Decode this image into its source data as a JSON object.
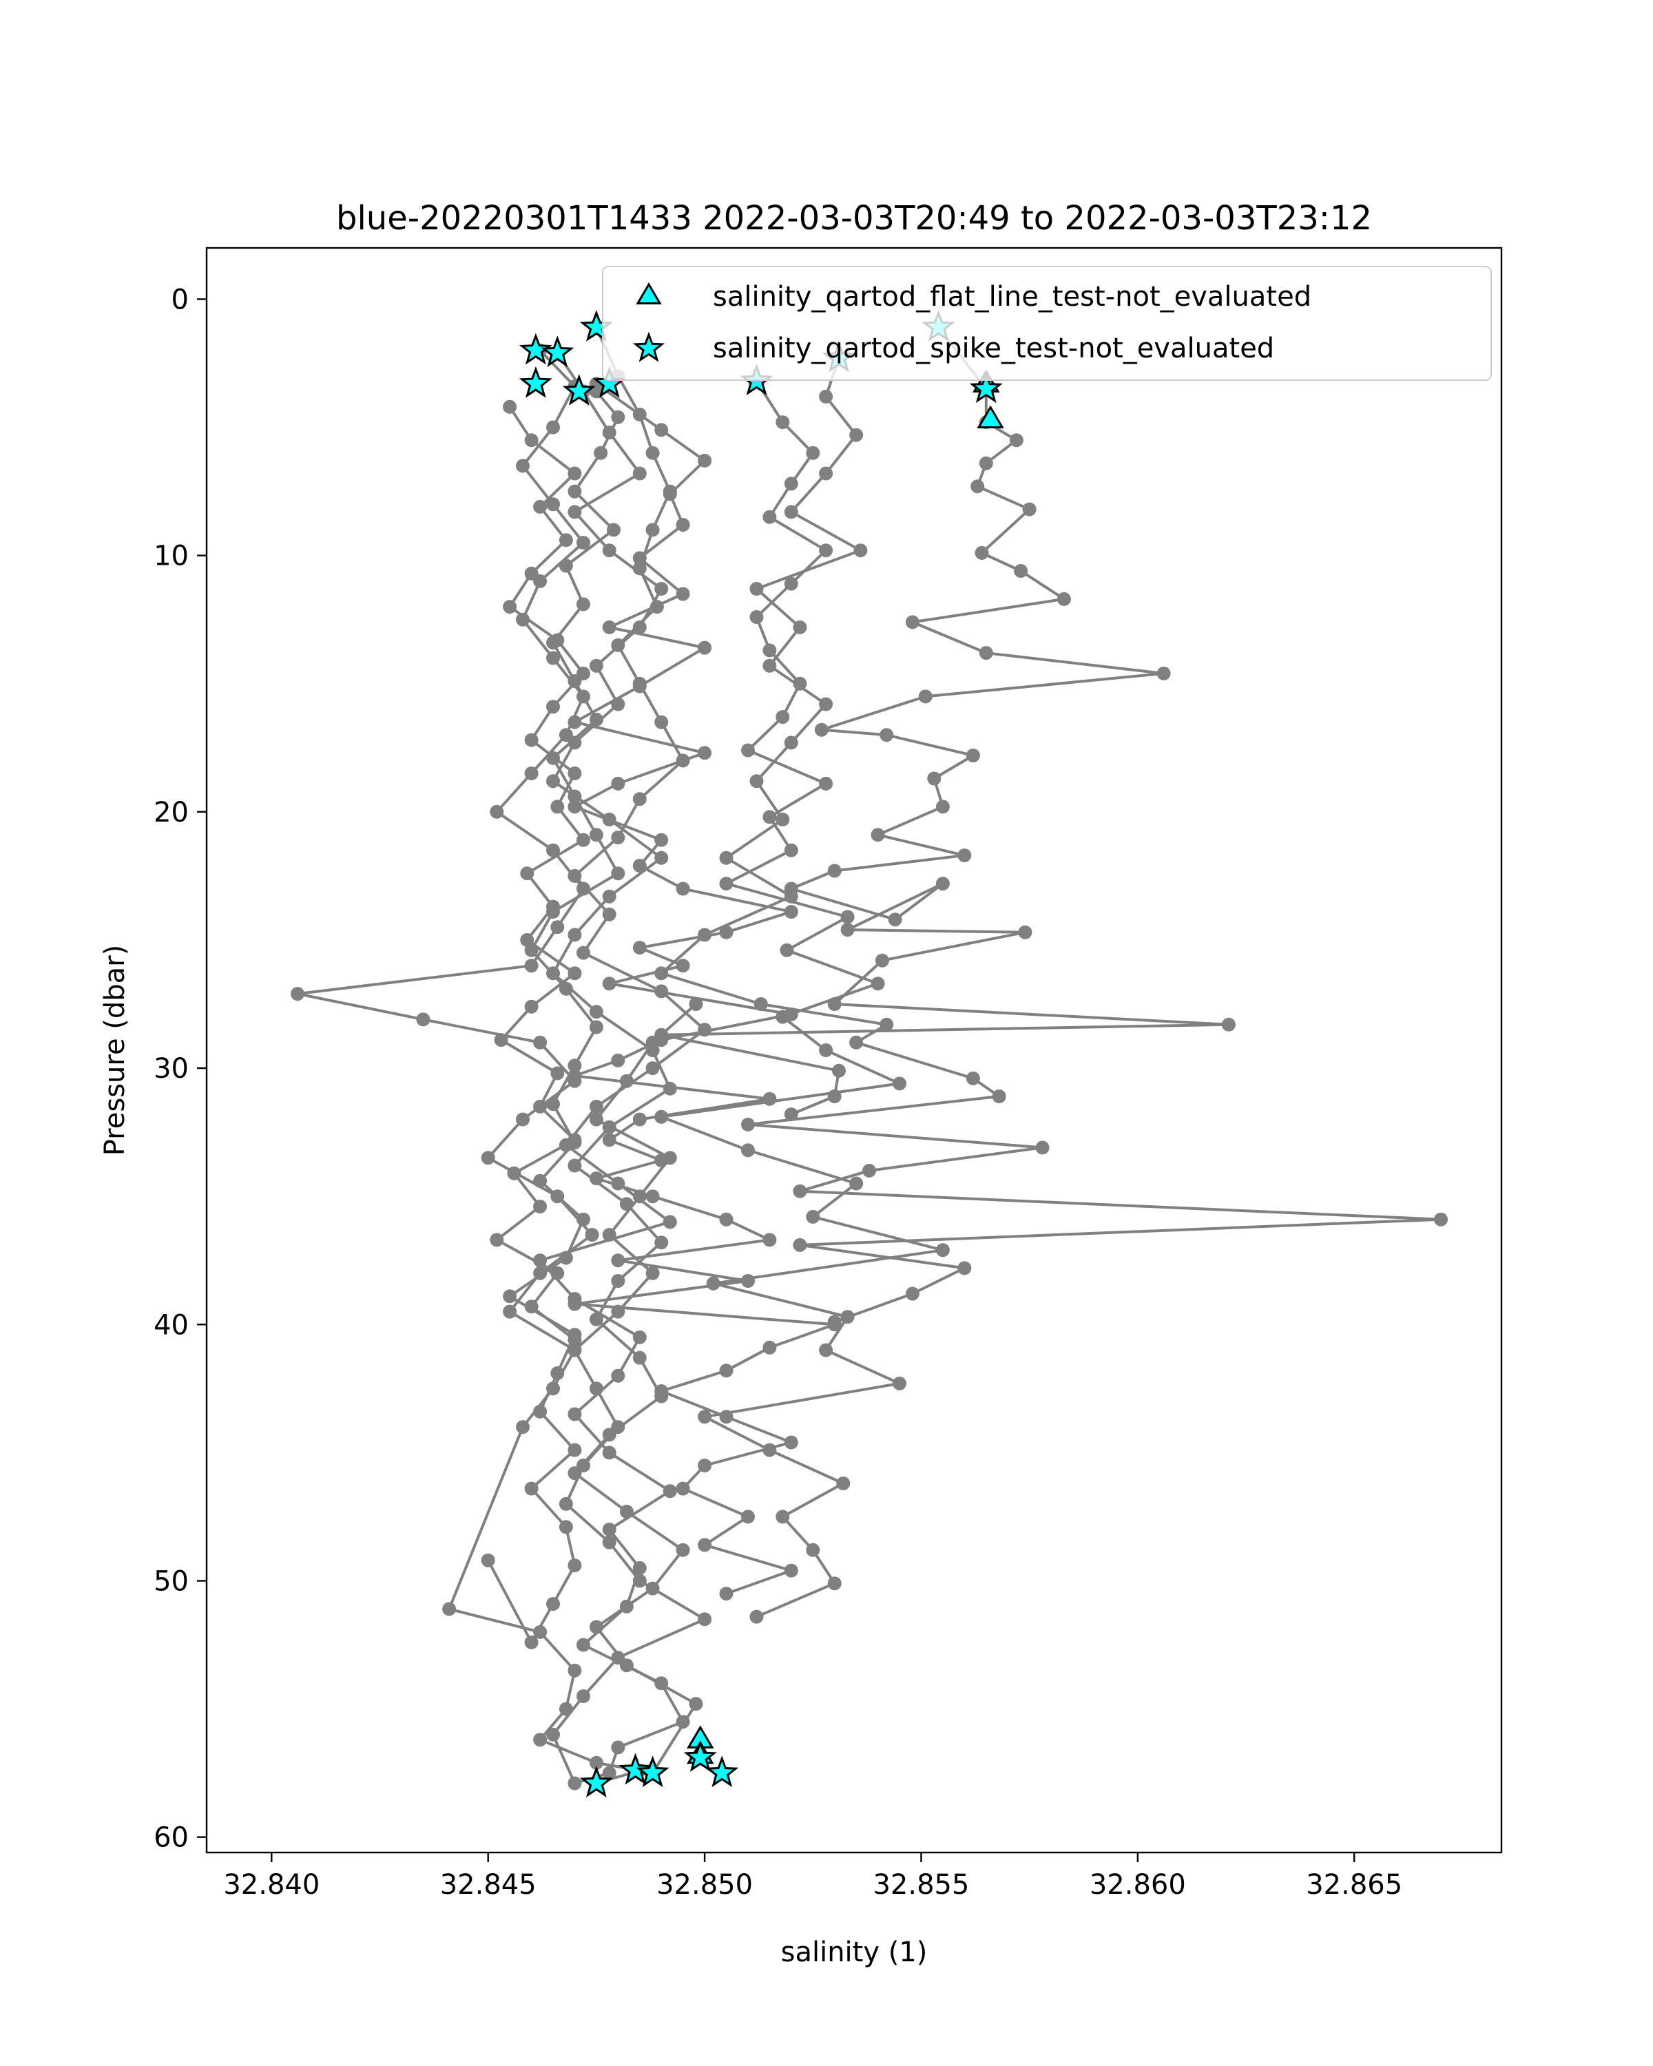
{
  "chart_data": {
    "type": "line",
    "title": "blue-20220301T1433 2022-03-03T20:49 to 2022-03-03T23:12",
    "xlabel": "salinity (1)",
    "ylabel": "Pressure (dbar)",
    "xlim": [
      32.8385,
      32.8684
    ],
    "ylim": [
      60.6,
      -2.0
    ],
    "y_inverted": true,
    "x_ticks": [
      32.84,
      32.845,
      32.85,
      32.855,
      32.86,
      32.865
    ],
    "x_tick_labels": [
      "32.840",
      "32.845",
      "32.850",
      "32.855",
      "32.860",
      "32.865"
    ],
    "y_ticks": [
      0,
      10,
      20,
      30,
      40,
      50,
      60
    ],
    "y_tick_labels": [
      "0",
      "10",
      "20",
      "30",
      "40",
      "50",
      "60"
    ],
    "grid": false,
    "legend_position": "top-right",
    "colors": {
      "profile": "#808080",
      "marker_fill": "#00ffff",
      "marker_edge": "#000000"
    },
    "series": [
      {
        "style": "profile",
        "x": [
          32.8475,
          32.848,
          32.8485,
          32.8488,
          32.8492,
          32.8488,
          32.8485,
          32.8489,
          32.848,
          32.8485,
          32.849,
          32.8495,
          32.8485,
          32.848,
          32.847,
          32.8478,
          32.8472,
          32.849,
          32.85,
          32.8488,
          32.8475,
          32.8468,
          32.848,
          32.8492,
          32.8462,
          32.847,
          32.8485,
          32.848,
          32.847,
          32.8478,
          32.8492,
          32.8478,
          32.8485,
          32.8482,
          32.8472,
          32.849,
          32.8495,
          32.848,
          32.8478,
          32.847,
          32.8465,
          32.8472,
          32.848,
          32.85,
          32.8485,
          32.8478,
          32.8468,
          32.8472,
          32.848,
          32.8475,
          32.847,
          32.848,
          32.8488,
          32.8478,
          32.8485,
          32.8492,
          32.8475,
          32.8482,
          32.8488,
          32.8498
        ],
        "y": [
          1.1,
          3.0,
          4.5,
          6.0,
          7.5,
          9.0,
          10.5,
          12.0,
          13.5,
          15.0,
          16.5,
          18.0,
          19.5,
          21.0,
          22.5,
          24.0,
          25.5,
          27.0,
          28.5,
          30.0,
          31.5,
          33.0,
          34.5,
          36.0,
          37.5,
          39.0,
          40.5,
          42.0,
          43.5,
          45.0,
          46.5,
          48.0,
          49.5,
          51.0,
          52.5,
          54.0,
          55.5,
          56.5,
          57.5,
          57.9,
          56.0,
          54.5,
          53.0,
          51.5,
          50.0,
          48.5,
          47.0,
          45.5,
          44.0,
          42.5,
          41.0,
          39.5,
          38.0,
          36.5,
          35.0,
          33.5,
          32.0,
          30.5,
          29.0,
          27.5
        ]
      },
      {
        "style": "profile",
        "x": [
          32.8462,
          32.847,
          32.8465,
          32.8458,
          32.8465,
          32.8472,
          32.8462,
          32.8458,
          32.8465,
          32.8472,
          32.8468,
          32.846,
          32.8452,
          32.8465,
          32.8472,
          32.8466,
          32.846,
          32.8406,
          32.8435,
          32.8462,
          32.847,
          32.8458,
          32.845,
          32.8466,
          32.8474,
          32.8462,
          32.8455,
          32.847,
          32.8465,
          32.8458,
          32.8441,
          32.8462,
          32.847,
          32.8468,
          32.8462,
          32.8475,
          32.8485,
          32.8475
        ],
        "y": [
          2.0,
          3.4,
          5.0,
          6.5,
          8.0,
          9.5,
          11.0,
          12.5,
          14.0,
          15.5,
          17.0,
          18.5,
          20.0,
          21.5,
          23.0,
          24.5,
          26.0,
          27.1,
          28.1,
          29.0,
          30.5,
          32.0,
          33.5,
          35.0,
          36.5,
          38.0,
          39.5,
          41.0,
          42.5,
          44.0,
          51.1,
          52.0,
          53.5,
          55.0,
          56.2,
          57.1,
          57.4,
          57.9
        ]
      },
      {
        "style": "profile",
        "x": [
          32.8466,
          32.8472,
          32.8478,
          32.8485,
          32.847,
          32.8478,
          32.849,
          32.8485,
          32.8475,
          32.848,
          32.847,
          32.8465,
          32.8478,
          32.849,
          32.8478,
          32.847,
          32.8465,
          32.8475,
          32.8488,
          32.8492,
          32.8478,
          32.847,
          32.8482,
          32.849,
          32.848,
          32.8475,
          32.8485,
          32.849,
          32.8478,
          32.847,
          32.8482,
          32.8495,
          32.8488,
          32.8475,
          32.8482,
          32.8498,
          32.8488
        ],
        "y": [
          2.1,
          3.6,
          5.2,
          6.8,
          8.3,
          9.8,
          11.3,
          12.8,
          14.3,
          15.8,
          17.3,
          18.8,
          20.3,
          21.8,
          23.3,
          24.8,
          26.3,
          27.8,
          29.3,
          30.8,
          32.3,
          33.8,
          35.3,
          36.8,
          38.3,
          39.8,
          41.3,
          42.8,
          44.3,
          45.8,
          47.3,
          48.8,
          50.3,
          51.8,
          53.3,
          54.8,
          57.5
        ]
      },
      {
        "style": "profile",
        "x": [
          32.8475,
          32.849,
          32.85,
          32.8492,
          32.8495,
          32.8485,
          32.8495,
          32.8478,
          32.85,
          32.8485,
          32.847,
          32.85,
          32.848,
          32.847,
          32.849,
          32.8485,
          32.8495,
          32.852,
          32.8505,
          32.8485,
          32.8495,
          32.8478,
          32.852,
          32.849,
          32.848,
          32.847,
          32.8515,
          32.8485,
          32.8478,
          32.849,
          32.8475,
          32.8488,
          32.8505,
          32.8515,
          32.848,
          32.851,
          32.847,
          32.853,
          32.8515,
          32.8505,
          32.849,
          32.8505,
          32.852,
          32.85,
          32.8495,
          32.851,
          32.85,
          32.852,
          32.8505
        ],
        "y": [
          3.3,
          5.1,
          6.3,
          7.6,
          8.8,
          10.1,
          11.5,
          12.8,
          13.6,
          15.1,
          16.5,
          17.7,
          18.9,
          19.8,
          21.1,
          22.1,
          23.0,
          23.9,
          24.7,
          25.3,
          26.0,
          26.7,
          27.9,
          28.9,
          29.7,
          30.3,
          31.2,
          32.0,
          32.8,
          33.6,
          34.3,
          35.0,
          35.9,
          36.7,
          37.5,
          38.3,
          39.2,
          40.0,
          40.9,
          41.8,
          42.6,
          43.6,
          44.6,
          45.5,
          46.4,
          47.5,
          48.6,
          49.6,
          50.5
        ]
      },
      {
        "style": "profile",
        "x": [
          32.8512,
          32.8518,
          32.8525,
          32.852,
          32.8515,
          32.8528,
          32.852,
          32.8512,
          32.8515,
          32.8522,
          32.8518,
          32.851,
          32.8528,
          32.8515,
          32.852,
          32.8505,
          32.8533,
          32.8519,
          32.854,
          32.8518,
          32.8528,
          32.8545,
          32.849,
          32.851,
          32.8535,
          32.8525,
          32.8555,
          32.8502,
          32.8533,
          32.8528,
          32.8545,
          32.85,
          32.8515,
          32.8532,
          32.8518,
          32.8525,
          32.853,
          32.8512
        ],
        "y": [
          3.2,
          4.8,
          6.0,
          7.2,
          8.5,
          9.8,
          11.1,
          12.4,
          13.7,
          15.0,
          16.3,
          17.6,
          18.9,
          20.2,
          21.5,
          22.8,
          24.1,
          25.4,
          26.7,
          28.0,
          29.3,
          30.6,
          31.9,
          33.2,
          34.5,
          35.8,
          37.1,
          38.4,
          39.7,
          41.0,
          42.3,
          43.6,
          44.9,
          46.2,
          47.5,
          48.8,
          50.1,
          51.4
        ]
      },
      {
        "style": "profile",
        "x": [
          32.8531,
          32.8528,
          32.8535,
          32.8528,
          32.852,
          32.8536,
          32.8512,
          32.8522,
          32.8515,
          32.8528,
          32.852,
          32.8512,
          32.8518,
          32.8505,
          32.852,
          32.85,
          32.849,
          32.8513,
          32.8542,
          32.8535,
          32.8562,
          32.8568,
          32.851,
          32.8578,
          32.8538,
          32.8522,
          32.867,
          32.8522,
          32.856,
          32.8548,
          32.853
        ],
        "y": [
          2.3,
          3.8,
          5.3,
          6.8,
          8.3,
          9.8,
          11.3,
          12.8,
          14.3,
          15.8,
          17.3,
          18.8,
          20.3,
          21.8,
          23.3,
          24.8,
          26.3,
          27.5,
          28.3,
          29.0,
          30.4,
          31.1,
          32.2,
          33.1,
          34.0,
          34.8,
          35.9,
          36.9,
          37.8,
          38.8,
          39.9
        ]
      },
      {
        "style": "profile",
        "x": [
          32.8554,
          32.8565,
          32.8565,
          32.8572,
          32.8565,
          32.8563,
          32.8575,
          32.8564,
          32.8573,
          32.8583,
          32.8548,
          32.8565,
          32.8606,
          32.8551,
          32.8527,
          32.8542,
          32.8562,
          32.8553,
          32.8555,
          32.854,
          32.856,
          32.853,
          32.852,
          32.8544,
          32.8555,
          32.8533,
          32.8574,
          32.8541,
          32.853,
          32.8621,
          32.849,
          32.8531,
          32.853,
          32.852
        ],
        "y": [
          1.1,
          3.5,
          4.8,
          5.5,
          6.4,
          7.3,
          8.2,
          9.9,
          10.6,
          11.7,
          12.6,
          13.8,
          14.6,
          15.5,
          16.8,
          17.0,
          17.8,
          18.7,
          19.8,
          20.9,
          21.7,
          22.3,
          23.0,
          24.2,
          22.8,
          24.6,
          24.7,
          25.8,
          27.5,
          28.3,
          28.7,
          30.1,
          31.1,
          31.8
        ]
      },
      {
        "style": "profile",
        "x": [
          32.8475,
          32.848,
          32.8476,
          32.847,
          32.8479,
          32.8468,
          32.8472,
          32.8465,
          32.847,
          32.8475,
          32.8465,
          32.847,
          32.8475,
          32.848,
          32.8465,
          32.846,
          32.8468,
          32.8475,
          32.847,
          32.8465,
          32.847,
          32.8462,
          32.8472,
          32.8468,
          32.8455,
          32.847,
          32.8466,
          32.8462,
          32.847,
          32.846,
          32.8468,
          32.847,
          32.8465,
          32.846,
          32.845
        ],
        "y": [
          3.6,
          4.6,
          6.0,
          7.5,
          9.0,
          10.4,
          11.9,
          13.4,
          14.9,
          16.4,
          17.9,
          19.4,
          20.9,
          22.4,
          23.9,
          25.4,
          26.9,
          28.4,
          29.9,
          31.4,
          32.9,
          34.4,
          35.9,
          37.4,
          38.9,
          40.4,
          41.9,
          43.4,
          44.9,
          46.4,
          47.9,
          49.4,
          50.9,
          52.4,
          49.2
        ]
      },
      {
        "style": "profile",
        "x": [
          32.8455,
          32.846,
          32.847,
          32.8462,
          32.8468,
          32.846,
          32.8455,
          32.8466,
          32.8472,
          32.8465,
          32.846,
          32.847,
          32.8466,
          32.8472,
          32.8459,
          32.8465,
          32.8459,
          32.847,
          32.846,
          32.8453,
          32.8466,
          32.8462,
          32.847,
          32.8456,
          32.8462,
          32.8452,
          32.8466,
          32.846,
          32.847
        ],
        "y": [
          4.2,
          5.5,
          6.8,
          8.1,
          9.4,
          10.7,
          12.0,
          13.3,
          14.6,
          15.9,
          17.2,
          18.5,
          19.8,
          21.1,
          22.4,
          23.7,
          25.0,
          26.3,
          27.6,
          28.9,
          30.2,
          31.5,
          32.8,
          34.1,
          35.4,
          36.7,
          38.0,
          39.3,
          40.6
        ]
      },
      {
        "style": "flag",
        "name": "salinity_qartod_flat_line_test-not_evaluated",
        "marker": "triangle",
        "x": [
          32.8565,
          32.8566,
          32.8499,
          32.8499
        ],
        "y": [
          3.3,
          4.7,
          56.2,
          56.8
        ]
      },
      {
        "style": "flag",
        "name": "salinity_qartod_spike_test-not_evaluated",
        "marker": "star",
        "x": [
          32.8475,
          32.8554,
          32.8531,
          32.8461,
          32.8466,
          32.8512,
          32.8565,
          32.8461,
          32.8471,
          32.8478,
          32.8484,
          32.8488,
          32.8504,
          32.8475,
          32.8499
        ],
        "y": [
          1.1,
          1.1,
          2.3,
          2.0,
          2.1,
          3.2,
          3.5,
          3.3,
          3.6,
          3.3,
          57.4,
          57.5,
          57.5,
          57.9,
          56.9
        ]
      }
    ]
  }
}
